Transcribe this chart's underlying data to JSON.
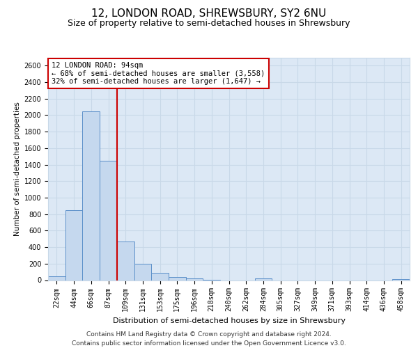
{
  "title1": "12, LONDON ROAD, SHREWSBURY, SY2 6NU",
  "title2": "Size of property relative to semi-detached houses in Shrewsbury",
  "xlabel": "Distribution of semi-detached houses by size in Shrewsbury",
  "ylabel": "Number of semi-detached properties",
  "footer1": "Contains HM Land Registry data © Crown copyright and database right 2024.",
  "footer2": "Contains public sector information licensed under the Open Government Licence v3.0.",
  "bin_labels": [
    "22sqm",
    "44sqm",
    "66sqm",
    "87sqm",
    "109sqm",
    "131sqm",
    "153sqm",
    "175sqm",
    "196sqm",
    "218sqm",
    "240sqm",
    "262sqm",
    "284sqm",
    "305sqm",
    "327sqm",
    "349sqm",
    "371sqm",
    "393sqm",
    "414sqm",
    "436sqm",
    "458sqm"
  ],
  "bar_values": [
    50,
    850,
    2050,
    1450,
    470,
    200,
    90,
    35,
    20,
    5,
    0,
    0,
    20,
    0,
    0,
    0,
    0,
    0,
    0,
    0,
    15
  ],
  "bar_color": "#c5d8ee",
  "bar_edge_color": "#5b8fc9",
  "vline_color": "#cc0000",
  "vline_x": 3.5,
  "annotation_title": "12 LONDON ROAD: 94sqm",
  "annotation_line1": "← 68% of semi-detached houses are smaller (3,558)",
  "annotation_line2": "32% of semi-detached houses are larger (1,647) →",
  "annotation_box_color": "#ffffff",
  "annotation_box_edge": "#cc0000",
  "ylim": [
    0,
    2700
  ],
  "yticks": [
    0,
    200,
    400,
    600,
    800,
    1000,
    1200,
    1400,
    1600,
    1800,
    2000,
    2200,
    2400,
    2600
  ],
  "grid_color": "#c8d8e8",
  "background_color": "#dce8f5",
  "title1_fontsize": 11,
  "title2_fontsize": 9,
  "xlabel_fontsize": 8,
  "ylabel_fontsize": 7.5,
  "tick_fontsize": 7,
  "footer_fontsize": 6.5
}
